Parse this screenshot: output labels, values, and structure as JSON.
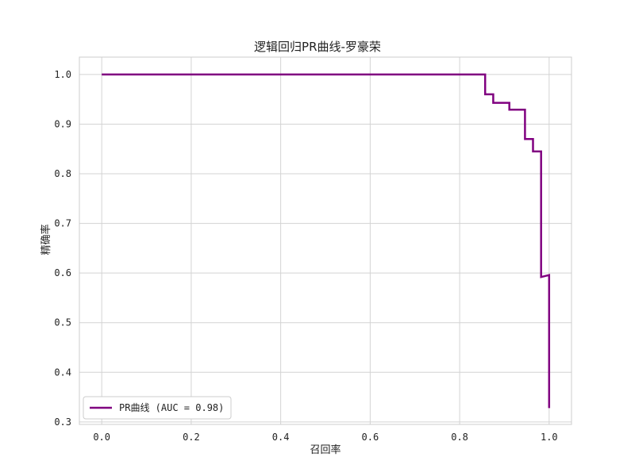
{
  "chart_data": {
    "type": "line",
    "title": "逻辑回归PR曲线-罗豪荣",
    "xlabel": "召回率",
    "ylabel": "精确率",
    "xlim": [
      -0.05,
      1.05
    ],
    "ylim": [
      0.295,
      1.035
    ],
    "xticks": [
      0.0,
      0.2,
      0.4,
      0.6,
      0.8,
      1.0
    ],
    "xtick_labels": [
      "0.0",
      "0.2",
      "0.4",
      "0.6",
      "0.8",
      "1.0"
    ],
    "yticks": [
      0.3,
      0.4,
      0.5,
      0.6,
      0.7,
      0.8,
      0.9,
      1.0
    ],
    "ytick_labels": [
      "0.3",
      "0.4",
      "0.5",
      "0.6",
      "0.7",
      "0.8",
      "0.9",
      "1.0"
    ],
    "grid": true,
    "legend_position": "lower-left",
    "series": [
      {
        "name": "PR曲线 (AUC = 0.98)",
        "color": "#800080",
        "step": true,
        "x": [
          0.0,
          0.857,
          0.857,
          0.875,
          0.875,
          0.911,
          0.911,
          0.946,
          0.946,
          0.964,
          0.964,
          0.982,
          0.982,
          1.0,
          1.0
        ],
        "y": [
          1.0,
          1.0,
          0.96,
          0.96,
          0.943,
          0.943,
          0.929,
          0.929,
          0.87,
          0.87,
          0.845,
          0.845,
          0.592,
          0.596,
          0.328
        ]
      }
    ]
  }
}
